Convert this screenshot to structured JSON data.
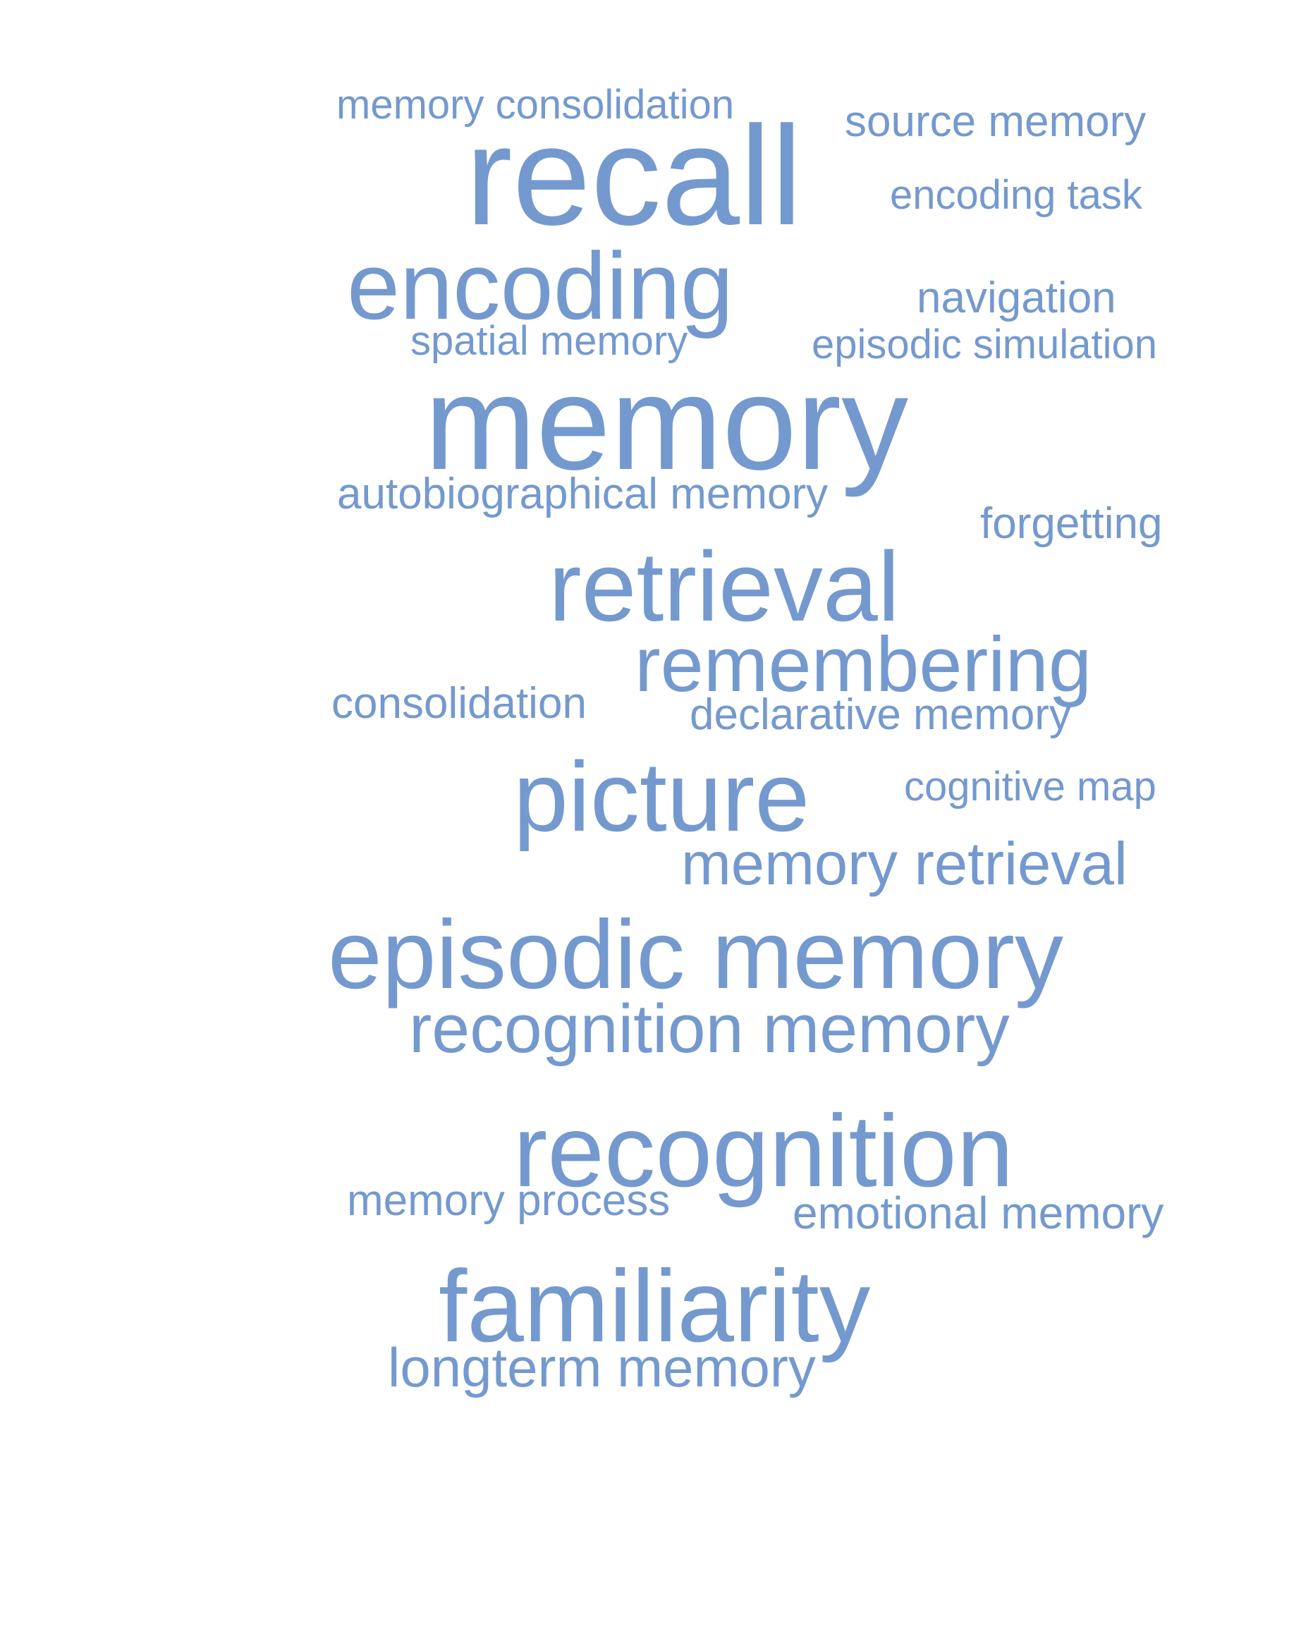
{
  "cloud": {
    "color": "#7499cf",
    "words": [
      {
        "text": "memory consolidation"
      },
      {
        "text": "source memory"
      },
      {
        "text": "recall"
      },
      {
        "text": "encoding task"
      },
      {
        "text": "encoding"
      },
      {
        "text": "navigation"
      },
      {
        "text": "spatial memory"
      },
      {
        "text": "episodic simulation"
      },
      {
        "text": "memory"
      },
      {
        "text": "autobiographical memory"
      },
      {
        "text": "forgetting"
      },
      {
        "text": "retrieval"
      },
      {
        "text": "remembering"
      },
      {
        "text": "consolidation"
      },
      {
        "text": "declarative memory"
      },
      {
        "text": "picture"
      },
      {
        "text": "cognitive map"
      },
      {
        "text": "memory retrieval"
      },
      {
        "text": "episodic memory"
      },
      {
        "text": "recognition memory"
      },
      {
        "text": "recognition"
      },
      {
        "text": "memory process"
      },
      {
        "text": "emotional memory"
      },
      {
        "text": "familiarity"
      },
      {
        "text": "longterm memory"
      }
    ]
  }
}
